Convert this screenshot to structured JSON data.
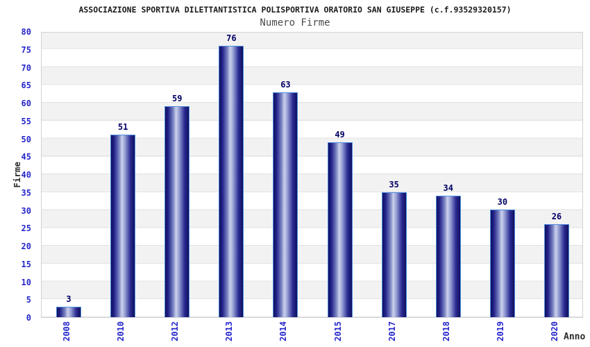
{
  "chart_data": {
    "type": "bar",
    "title": "ASSOCIAZIONE SPORTIVA DILETTANTISTICA POLISPORTIVA ORATORIO SAN GIUSEPPE (c.f.93529320157)",
    "subtitle": "Numero Firme",
    "xlabel": "Anno",
    "ylabel": "Firme",
    "categories": [
      "2008",
      "2010",
      "2012",
      "2013",
      "2014",
      "2015",
      "2017",
      "2018",
      "2019",
      "2020"
    ],
    "values": [
      3,
      51,
      59,
      76,
      63,
      49,
      35,
      34,
      30,
      26
    ],
    "ylim": [
      0,
      80
    ],
    "ytick_step": 5,
    "yticks": [
      0,
      5,
      10,
      15,
      20,
      25,
      30,
      35,
      40,
      45,
      50,
      55,
      60,
      65,
      70,
      75,
      80
    ],
    "grid": "horizontal alternating gray/white bands every 5 units",
    "legend_position": "none",
    "bar_style": "cylinder gradient, value label above each bar",
    "colors": {
      "tick_label_blue": "#2626cc",
      "value_label_navy": "#000066",
      "bar_edge_navy": "#10105e",
      "bar_mid": "#7a84c2",
      "bar_center_light": "#ccd1ec",
      "bar_outline_lightblue": "#4e8ede",
      "band_gray": "#f2f2f2",
      "band_white": "#ffffff",
      "title_color": "#1a1a1a",
      "subtitle_color": "#4a4a4a",
      "axis_title_color": "#2b2b2b"
    }
  }
}
